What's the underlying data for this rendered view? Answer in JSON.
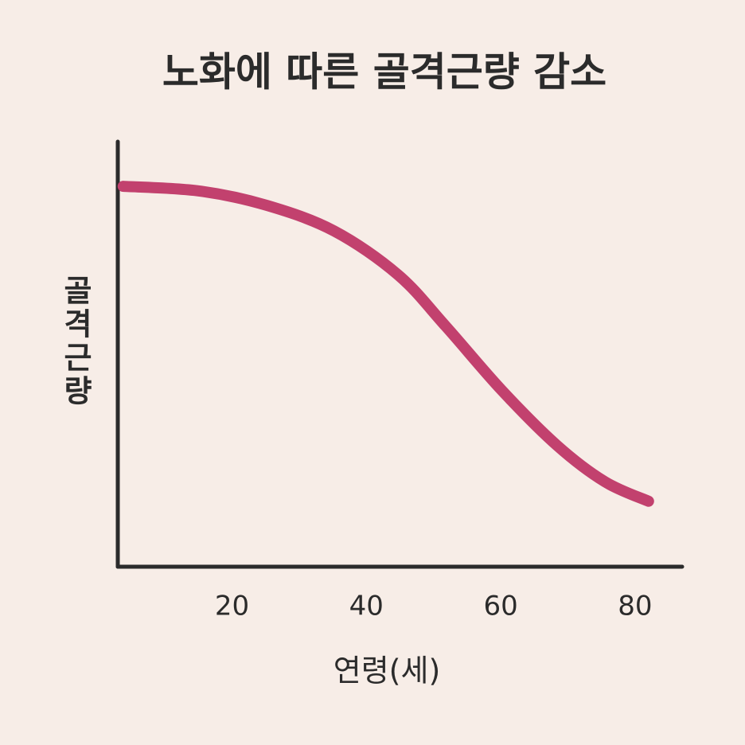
{
  "chart_data": {
    "type": "line",
    "title": "노화에 따른 골격근량 감소",
    "x_label": "연령(세)",
    "y_label": "골격근량",
    "xlim": [
      3,
      87
    ],
    "xticks": [
      20,
      40,
      60,
      80
    ],
    "ylim": [
      0,
      100
    ],
    "grid": false,
    "series": [
      {
        "color": "#c2416e",
        "x": [
          3.8,
          15.1,
          25.2,
          35.2,
          44.7,
          51.8,
          60.1,
          68.4,
          75.5,
          82.0
        ],
        "values": [
          89.5,
          88.4,
          85,
          79,
          68.7,
          56.6,
          41.6,
          28.5,
          20,
          15.4
        ]
      }
    ]
  }
}
